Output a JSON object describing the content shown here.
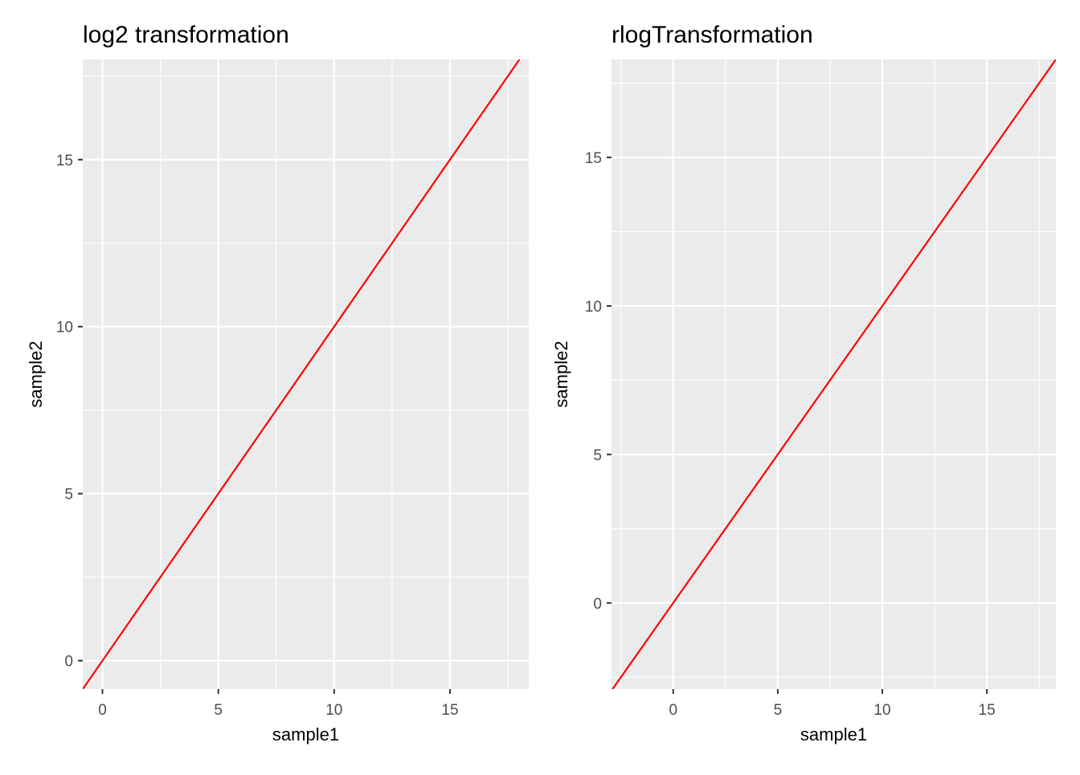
{
  "chart_data": [
    {
      "type": "line",
      "title": "log2 transformation",
      "xlabel": "sample1",
      "ylabel": "sample2",
      "xlim": [
        -0.85,
        18.4
      ],
      "ylim": [
        -0.85,
        18.0
      ],
      "x_ticks": [
        0,
        5,
        10,
        15
      ],
      "y_ticks": [
        0,
        5,
        10,
        15
      ],
      "x_tick_labels": [
        "0",
        "5",
        "10",
        "15"
      ],
      "y_tick_labels": [
        "0",
        "5",
        "10",
        "15"
      ],
      "grid": true,
      "background": "#ebebeb",
      "grid_color": "#ffffff",
      "series": [
        {
          "x": [
            -0.85,
            18.0
          ],
          "y": [
            -0.85,
            18.0
          ],
          "color": "#ff0000"
        }
      ]
    },
    {
      "type": "line",
      "title": "rlogTransformation",
      "xlabel": "sample1",
      "ylabel": "sample2",
      "xlim": [
        -2.95,
        18.3
      ],
      "ylim": [
        -2.9,
        18.3
      ],
      "x_ticks": [
        0,
        5,
        10,
        15
      ],
      "y_ticks": [
        0,
        5,
        10,
        15
      ],
      "x_tick_labels": [
        "0",
        "5",
        "10",
        "15"
      ],
      "y_tick_labels": [
        "0",
        "5",
        "10",
        "15"
      ],
      "grid": true,
      "background": "#ebebeb",
      "grid_color": "#ffffff",
      "series": [
        {
          "x": [
            -2.95,
            18.3
          ],
          "y": [
            -2.95,
            18.3
          ],
          "color": "#ff0000"
        }
      ]
    }
  ]
}
